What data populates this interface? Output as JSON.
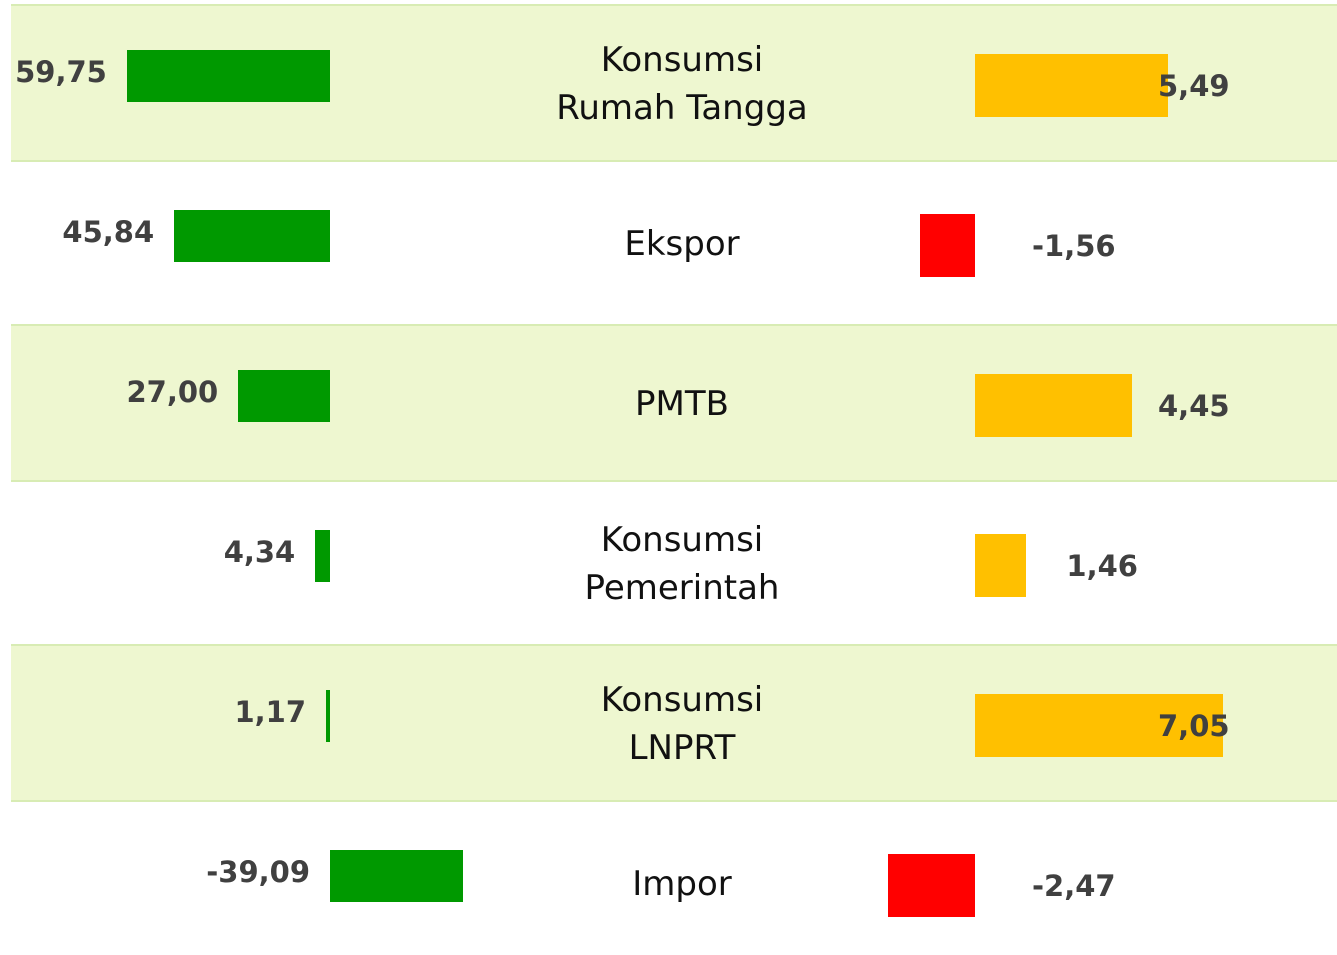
{
  "chart_data": {
    "type": "butterfly",
    "categories": [
      "Konsumsi\nRumah Tangga",
      "Ekspor",
      "PMTB",
      "Konsumsi\nPemerintah",
      "Konsumsi\nLNPRT",
      "Impor"
    ],
    "band_color": "#eef7d0",
    "series": [
      {
        "color": "#009900",
        "values": [
          59.75,
          45.84,
          27.0,
          4.34,
          1.17,
          -39.09
        ],
        "value_labels": [
          "59,75",
          "45,84",
          "27,00",
          "4,34",
          "1,17",
          "-39,09"
        ]
      },
      {
        "color": "#ffc000",
        "negative_color": "#ff0000",
        "values": [
          5.49,
          -1.56,
          4.45,
          1.46,
          7.05,
          -2.47
        ],
        "value_labels": [
          "5,49",
          "-1,56",
          "4,45",
          "1,46",
          "7,05",
          "-2,47"
        ]
      }
    ]
  }
}
